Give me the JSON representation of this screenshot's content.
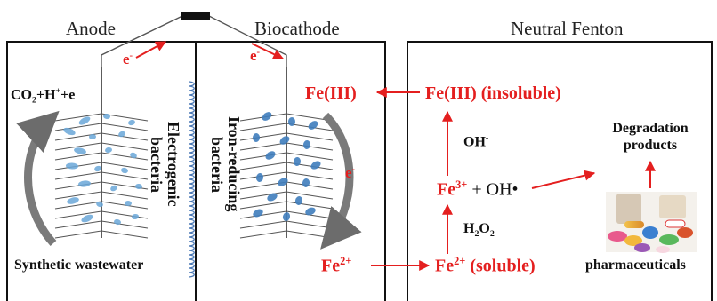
{
  "headers": {
    "anode": "Anode",
    "biocathode": "Biocathode",
    "fenton": "Neutral Fenton"
  },
  "electrons": {
    "anode": "e",
    "cathode": "e",
    "side": "e",
    "minus": "-"
  },
  "anode": {
    "reaction_main": "CO",
    "reaction_sub": "2",
    "reaction_rest": "+H",
    "reaction_sup": "+",
    "reaction_end": "+e",
    "reaction_sup2": "-",
    "bacteria_label": "Electrogenic bacteria"
  },
  "cathode": {
    "bacteria_label": "Iron-reducing bacteria"
  },
  "wastewater": "Synthetic wastewater",
  "fenton": {
    "fe3_left": "Fe(III)",
    "fe3_insoluble": "Fe(III) (insoluble)",
    "oh_minus": "OH",
    "oh_sup": "-",
    "fe3plus": "Fe",
    "fe3plus_sup": "3+",
    "oh_radical": " + OH•",
    "h2o2": "H",
    "h2o2_sub": "2",
    "h2o2_o": "O",
    "h2o2_sub2": "2",
    "fe2_left": "Fe",
    "fe2_left_sup": "2+",
    "fe2_soluble": "Fe",
    "fe2_soluble_sup": "2+",
    "fe2_soluble_text": " (soluble)",
    "degradation": "Degradation products",
    "pharma": "pharmaceuticals"
  },
  "colors": {
    "red": "#e41f1f",
    "blue": "#6aa7d8",
    "deep_blue": "#3f7dbd",
    "gray": "#7a7a7a"
  }
}
